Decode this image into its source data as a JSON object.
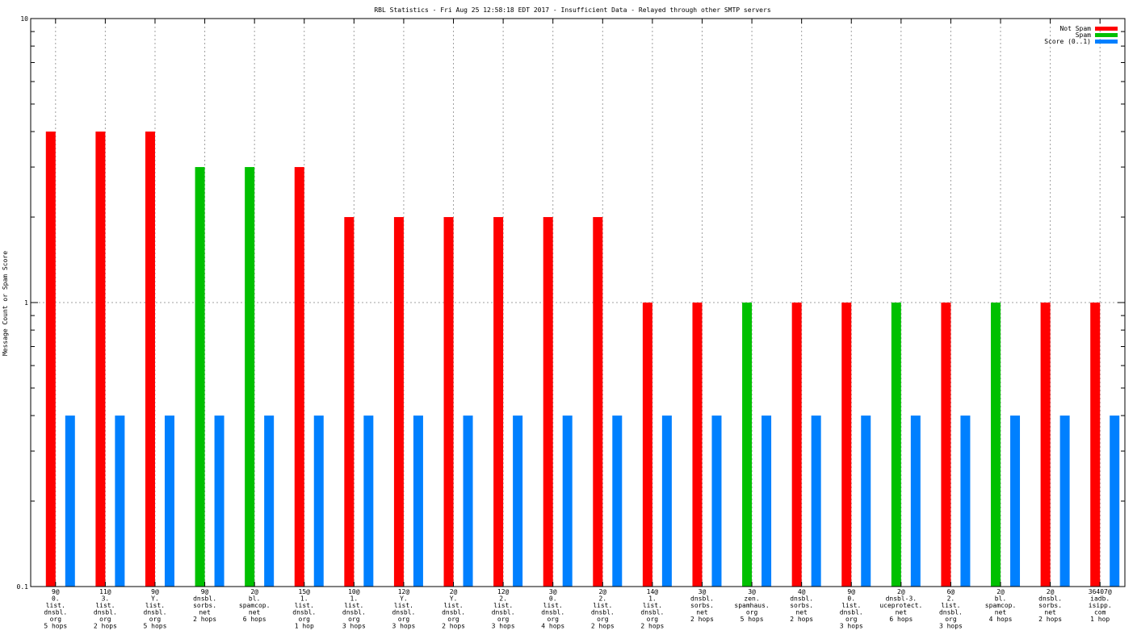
{
  "chart_data": {
    "type": "bar",
    "title": "RBL Statistics - Fri Aug 25 12:58:18 EDT 2017 - Insufficient Data - Relayed through other SMTP servers",
    "xlabel": "",
    "ylabel": "Message Count or Spam Score",
    "y_scale": "log",
    "ylim": [
      0.1,
      10
    ],
    "y_ticks": [
      {
        "value": 0.1,
        "label": "0.1"
      },
      {
        "value": 1,
        "label": "1"
      },
      {
        "value": 10,
        "label": "10"
      }
    ],
    "grid": true,
    "legend_position": "top-right",
    "categories": [
      [
        "9@",
        "0.",
        "list.",
        "dnsbl.",
        "org",
        "5 hops"
      ],
      [
        "11@",
        "3.",
        "list.",
        "dnsbl.",
        "org",
        "2 hops"
      ],
      [
        "9@",
        "Y.",
        "list.",
        "dnsbl.",
        "org",
        "5 hops"
      ],
      [
        "9@",
        "dnsbl.",
        "sorbs.",
        "net",
        "2 hops"
      ],
      [
        "2@",
        "bl.",
        "spamcop.",
        "net",
        "6 hops"
      ],
      [
        "15@",
        "1.",
        "list.",
        "dnsbl.",
        "org",
        "1 hop"
      ],
      [
        "10@",
        "1.",
        "list.",
        "dnsbl.",
        "org",
        "3 hops"
      ],
      [
        "12@",
        "Y.",
        "list.",
        "dnsbl.",
        "org",
        "3 hops"
      ],
      [
        "2@",
        "Y.",
        "list.",
        "dnsbl.",
        "org",
        "2 hops"
      ],
      [
        "12@",
        "2.",
        "list.",
        "dnsbl.",
        "org",
        "3 hops"
      ],
      [
        "3@",
        "0.",
        "list.",
        "dnsbl.",
        "org",
        "4 hops"
      ],
      [
        "2@",
        "2.",
        "list.",
        "dnsbl.",
        "org",
        "2 hops"
      ],
      [
        "14@",
        "1.",
        "list.",
        "dnsbl.",
        "org",
        "2 hops"
      ],
      [
        "3@",
        "dnsbl.",
        "sorbs.",
        "net",
        "2 hops"
      ],
      [
        "3@",
        "zen.",
        "spamhaus.",
        "org",
        "5 hops"
      ],
      [
        "4@",
        "dnsbl.",
        "sorbs.",
        "net",
        "2 hops"
      ],
      [
        "9@",
        "0.",
        "list.",
        "dnsbl.",
        "org",
        "3 hops"
      ],
      [
        "2@",
        "dnsbl-3.",
        "uceprotect.",
        "net",
        "6 hops"
      ],
      [
        "6@",
        "2.",
        "list.",
        "dnsbl.",
        "org",
        "3 hops"
      ],
      [
        "2@",
        "bl.",
        "spamcop.",
        "net",
        "4 hops"
      ],
      [
        "2@",
        "dnsbl.",
        "sorbs.",
        "net",
        "2 hops"
      ],
      [
        "36407@",
        "iadb.",
        "isipp.",
        "com",
        "1 hop"
      ]
    ],
    "series": [
      {
        "name": "Not Spam",
        "color": "#ff0000",
        "values": [
          4,
          4,
          4,
          null,
          null,
          3,
          2,
          2,
          2,
          2,
          2,
          2,
          1,
          1,
          null,
          1,
          1,
          null,
          1,
          null,
          1,
          1
        ]
      },
      {
        "name": "Spam",
        "color": "#00c000",
        "values": [
          null,
          null,
          null,
          3,
          3,
          null,
          null,
          null,
          null,
          null,
          null,
          null,
          null,
          null,
          1,
          null,
          null,
          1,
          null,
          1,
          null,
          null
        ]
      },
      {
        "name": "Score (0..1)",
        "color": "#0080ff",
        "values": [
          0.4,
          0.4,
          0.4,
          0.4,
          0.4,
          0.4,
          0.4,
          0.4,
          0.4,
          0.4,
          0.4,
          0.4,
          0.4,
          0.4,
          0.4,
          0.4,
          0.4,
          0.4,
          0.4,
          0.4,
          0.4,
          0.4
        ]
      }
    ]
  }
}
